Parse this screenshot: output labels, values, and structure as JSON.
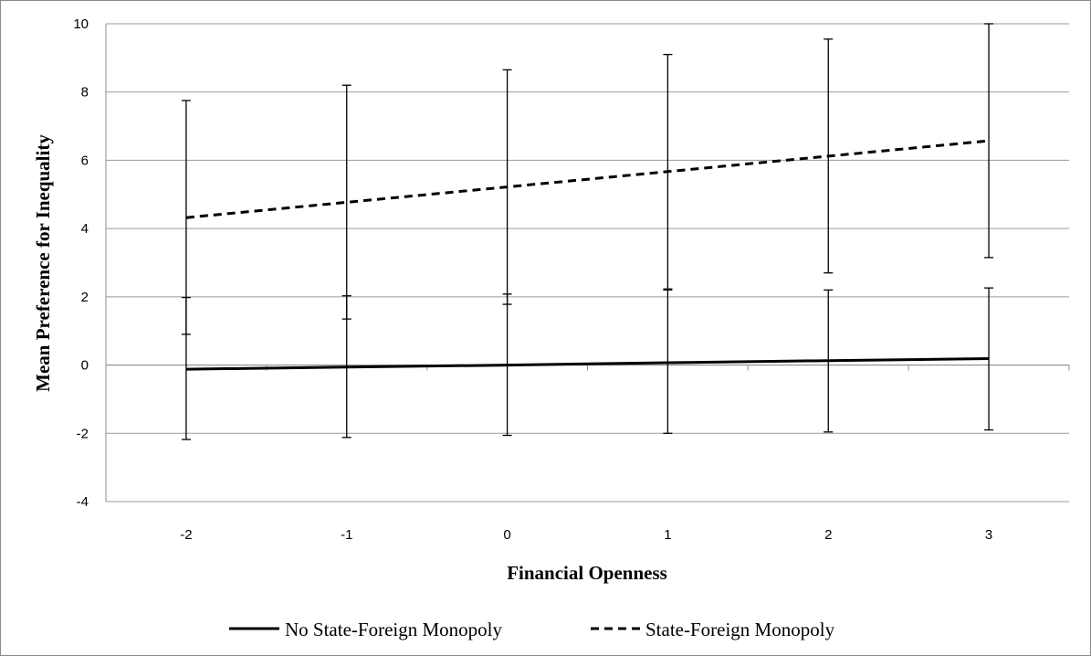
{
  "chart_data": {
    "type": "line",
    "title": "",
    "xlabel": "Financial Openness",
    "ylabel": "Mean Preference for Inequality",
    "categories": [
      "-2",
      "-1",
      "0",
      "1",
      "2",
      "3"
    ],
    "x": [
      -2,
      -1,
      0,
      1,
      2,
      3
    ],
    "ylim": [
      -4,
      10
    ],
    "yticks": [
      "-4",
      "-2",
      "0",
      "2",
      "4",
      "6",
      "8",
      "10"
    ],
    "grid": "horizontal",
    "legend_position": "bottom",
    "series": [
      {
        "name": "No State-Foreign Monopoly",
        "style": "solid",
        "color": "#000000",
        "values": [
          -0.12,
          -0.06,
          0.0,
          0.07,
          0.13,
          0.19
        ],
        "error_low": [
          -2.18,
          -2.12,
          -2.06,
          -2.0,
          -1.96,
          -1.9
        ],
        "error_high": [
          1.98,
          2.03,
          2.08,
          2.2,
          2.2,
          2.26
        ]
      },
      {
        "name": "State-Foreign Monopoly",
        "style": "dashed",
        "color": "#000000",
        "values": [
          4.32,
          4.77,
          5.22,
          5.67,
          6.12,
          6.57
        ],
        "error_low": [
          0.9,
          1.35,
          1.78,
          2.23,
          2.7,
          3.15
        ],
        "error_high": [
          7.75,
          8.2,
          8.65,
          9.1,
          9.55,
          10.0
        ]
      }
    ]
  }
}
